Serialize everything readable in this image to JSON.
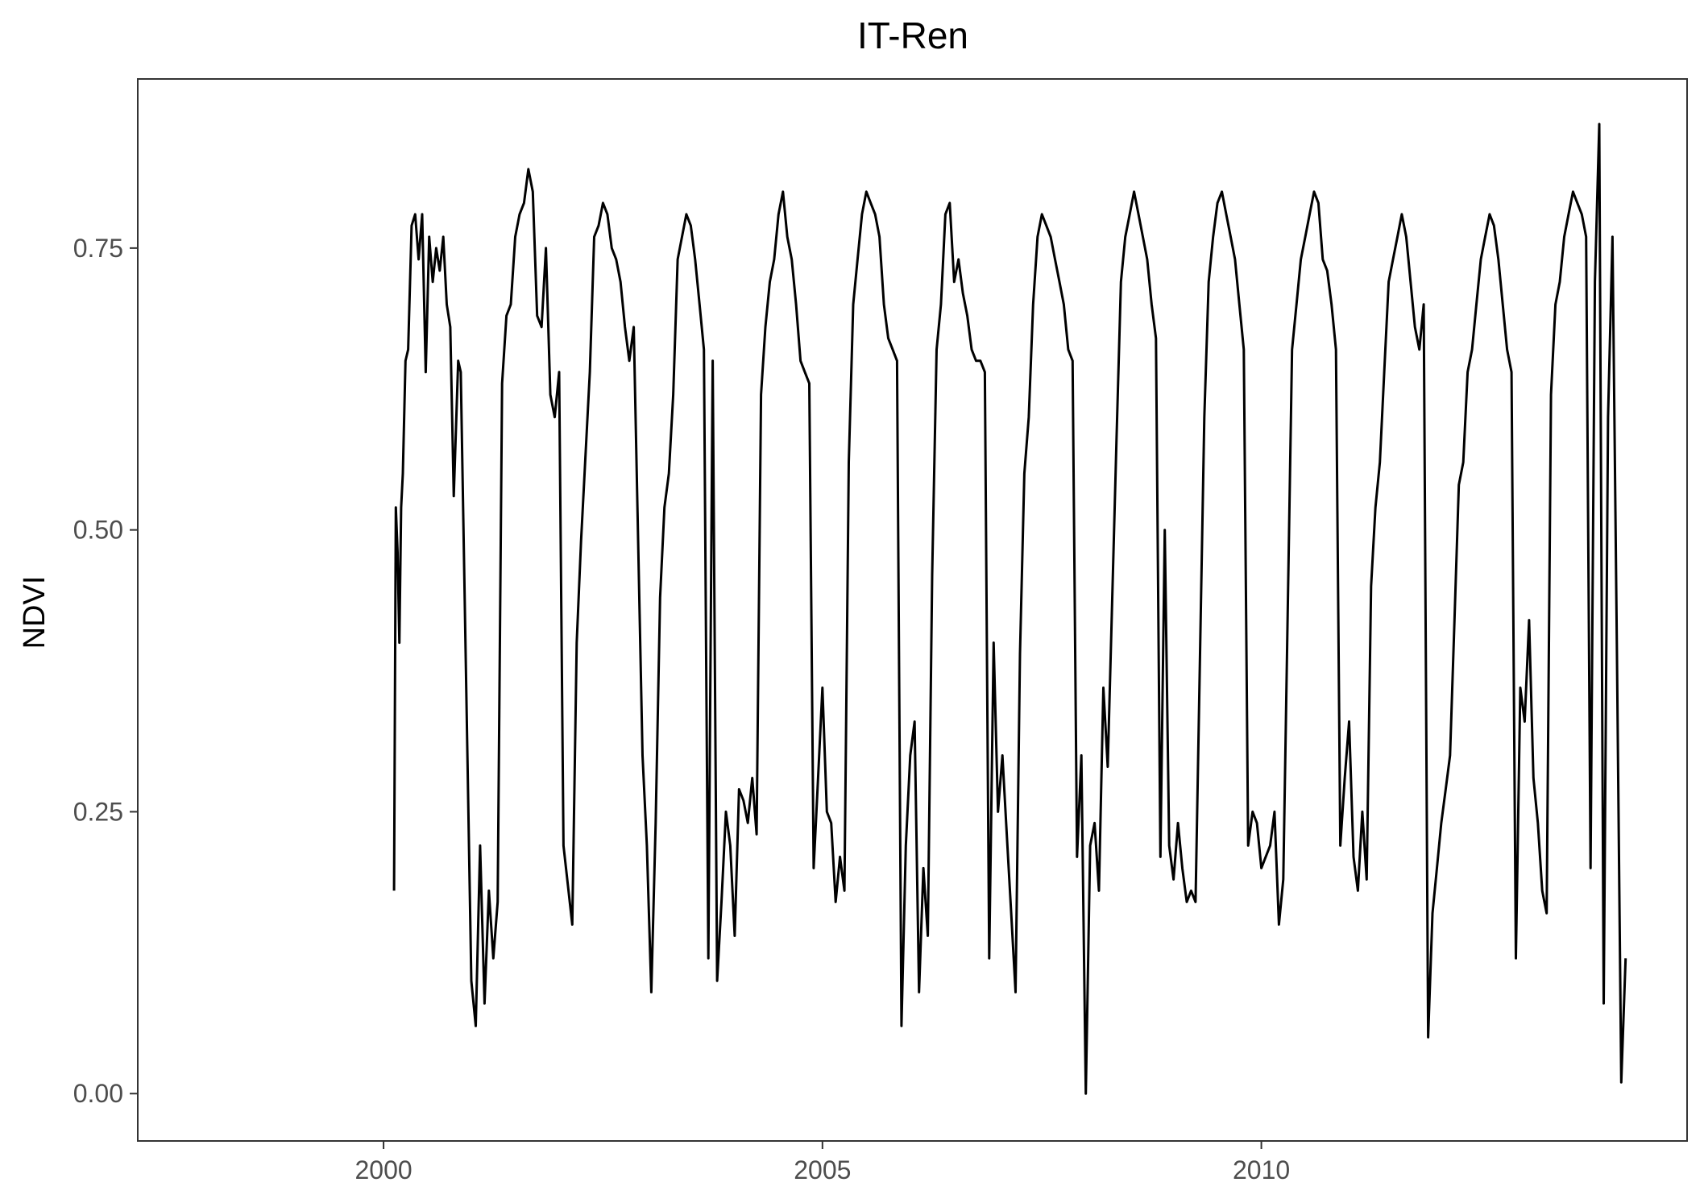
{
  "chart_data": {
    "type": "line",
    "title": "IT-Ren",
    "xlabel": "",
    "ylabel": "NDVI",
    "xlim": [
      1997.2,
      2014.85
    ],
    "ylim": [
      -0.042,
      0.9
    ],
    "xticks": [
      2000,
      2005,
      2010
    ],
    "xtick_labels": [
      "2000",
      "2005",
      "2010"
    ],
    "yticks": [
      0.0,
      0.25,
      0.5,
      0.75
    ],
    "ytick_labels": [
      "0.00",
      "0.25",
      "0.50",
      "0.75"
    ],
    "grid": false,
    "legend": "none",
    "line_color": "#000000",
    "series": [
      {
        "x": [
          2000.12,
          2000.14,
          2000.16,
          2000.18,
          2000.2,
          2000.22,
          2000.25,
          2000.28,
          2000.32,
          2000.36,
          2000.4,
          2000.44,
          2000.48,
          2000.52,
          2000.56,
          2000.6,
          2000.64,
          2000.68,
          2000.72,
          2000.76,
          2000.8,
          2000.85,
          2000.88,
          2001.0,
          2001.05,
          2001.1,
          2001.15,
          2001.2,
          2001.25,
          2001.3,
          2001.35,
          2001.4,
          2001.45,
          2001.5,
          2001.55,
          2001.6,
          2001.65,
          2001.7,
          2001.75,
          2001.8,
          2001.85,
          2001.9,
          2001.95,
          2002.0,
          2002.05,
          2002.15,
          2002.2,
          2002.25,
          2002.35,
          2002.4,
          2002.45,
          2002.5,
          2002.55,
          2002.6,
          2002.65,
          2002.7,
          2002.75,
          2002.8,
          2002.85,
          2002.95,
          2003.0,
          2003.05,
          2003.1,
          2003.15,
          2003.2,
          2003.25,
          2003.3,
          2003.35,
          2003.4,
          2003.45,
          2003.5,
          2003.55,
          2003.6,
          2003.65,
          2003.7,
          2003.75,
          2003.8,
          2003.85,
          2003.9,
          2003.95,
          2004.0,
          2004.05,
          2004.1,
          2004.15,
          2004.2,
          2004.25,
          2004.3,
          2004.35,
          2004.4,
          2004.45,
          2004.5,
          2004.55,
          2004.6,
          2004.65,
          2004.7,
          2004.75,
          2004.8,
          2004.85,
          2004.9,
          2004.95,
          2005.0,
          2005.05,
          2005.1,
          2005.15,
          2005.2,
          2005.25,
          2005.3,
          2005.35,
          2005.4,
          2005.45,
          2005.5,
          2005.55,
          2005.6,
          2005.65,
          2005.7,
          2005.75,
          2005.8,
          2005.85,
          2005.9,
          2005.95,
          2006.0,
          2006.05,
          2006.1,
          2006.15,
          2006.2,
          2006.25,
          2006.3,
          2006.35,
          2006.4,
          2006.45,
          2006.5,
          2006.55,
          2006.6,
          2006.65,
          2006.7,
          2006.75,
          2006.8,
          2006.85,
          2006.9,
          2006.95,
          2007.0,
          2007.05,
          2007.1,
          2007.15,
          2007.2,
          2007.25,
          2007.3,
          2007.35,
          2007.4,
          2007.45,
          2007.5,
          2007.55,
          2007.6,
          2007.65,
          2007.7,
          2007.75,
          2007.8,
          2007.85,
          2007.9,
          2007.95,
          2008.0,
          2008.05,
          2008.1,
          2008.15,
          2008.2,
          2008.25,
          2008.35,
          2008.4,
          2008.45,
          2008.5,
          2008.55,
          2008.6,
          2008.65,
          2008.7,
          2008.75,
          2008.8,
          2008.85,
          2008.9,
          2008.95,
          2009.0,
          2009.05,
          2009.1,
          2009.15,
          2009.2,
          2009.25,
          2009.35,
          2009.4,
          2009.45,
          2009.5,
          2009.55,
          2009.6,
          2009.65,
          2009.7,
          2009.75,
          2009.8,
          2009.85,
          2009.9,
          2009.95,
          2010.0,
          2010.05,
          2010.1,
          2010.15,
          2010.2,
          2010.25,
          2010.35,
          2010.4,
          2010.45,
          2010.5,
          2010.55,
          2010.6,
          2010.65,
          2010.7,
          2010.75,
          2010.8,
          2010.85,
          2010.9,
          2010.95,
          2011.0,
          2011.05,
          2011.1,
          2011.15,
          2011.2,
          2011.25,
          2011.3,
          2011.35,
          2011.4,
          2011.45,
          2011.5,
          2011.55,
          2011.6,
          2011.65,
          2011.7,
          2011.75,
          2011.8,
          2011.85,
          2011.9,
          2011.95,
          2012.0,
          2012.05,
          2012.1,
          2012.15,
          2012.2,
          2012.25,
          2012.3,
          2012.35,
          2012.4,
          2012.45,
          2012.5,
          2012.55,
          2012.6,
          2012.65,
          2012.7,
          2012.75,
          2012.8,
          2012.85,
          2012.9,
          2012.95,
          2013.0,
          2013.05,
          2013.1,
          2013.15,
          2013.2,
          2013.25,
          2013.3,
          2013.35,
          2013.4,
          2013.45,
          2013.5,
          2013.55,
          2013.6,
          2013.65,
          2013.7,
          2013.75,
          2013.8,
          2013.85,
          2013.9,
          2013.95,
          2014.0,
          2014.05,
          2014.1,
          2014.15
        ],
        "y": [
          0.18,
          0.52,
          0.48,
          0.4,
          0.52,
          0.55,
          0.65,
          0.66,
          0.77,
          0.78,
          0.74,
          0.78,
          0.64,
          0.76,
          0.72,
          0.75,
          0.73,
          0.76,
          0.7,
          0.68,
          0.53,
          0.65,
          0.64,
          0.1,
          0.06,
          0.22,
          0.08,
          0.18,
          0.12,
          0.17,
          0.63,
          0.69,
          0.7,
          0.76,
          0.78,
          0.79,
          0.82,
          0.8,
          0.69,
          0.68,
          0.75,
          0.62,
          0.6,
          0.64,
          0.22,
          0.15,
          0.4,
          0.49,
          0.64,
          0.76,
          0.77,
          0.79,
          0.78,
          0.75,
          0.74,
          0.72,
          0.68,
          0.65,
          0.68,
          0.3,
          0.22,
          0.09,
          0.24,
          0.44,
          0.52,
          0.55,
          0.62,
          0.74,
          0.76,
          0.78,
          0.77,
          0.74,
          0.7,
          0.66,
          0.12,
          0.65,
          0.1,
          0.17,
          0.25,
          0.22,
          0.14,
          0.27,
          0.26,
          0.24,
          0.28,
          0.23,
          0.62,
          0.68,
          0.72,
          0.74,
          0.78,
          0.8,
          0.76,
          0.74,
          0.7,
          0.65,
          0.64,
          0.63,
          0.2,
          0.28,
          0.36,
          0.25,
          0.24,
          0.17,
          0.21,
          0.18,
          0.56,
          0.7,
          0.74,
          0.78,
          0.8,
          0.79,
          0.78,
          0.76,
          0.7,
          0.67,
          0.66,
          0.65,
          0.06,
          0.22,
          0.3,
          0.33,
          0.09,
          0.2,
          0.14,
          0.46,
          0.66,
          0.7,
          0.78,
          0.79,
          0.72,
          0.74,
          0.71,
          0.69,
          0.66,
          0.65,
          0.65,
          0.64,
          0.12,
          0.4,
          0.25,
          0.3,
          0.23,
          0.16,
          0.09,
          0.39,
          0.55,
          0.6,
          0.7,
          0.76,
          0.78,
          0.77,
          0.76,
          0.74,
          0.72,
          0.7,
          0.66,
          0.65,
          0.21,
          0.3,
          0.0,
          0.22,
          0.24,
          0.18,
          0.36,
          0.29,
          0.58,
          0.72,
          0.76,
          0.78,
          0.8,
          0.78,
          0.76,
          0.74,
          0.7,
          0.67,
          0.21,
          0.5,
          0.22,
          0.19,
          0.24,
          0.2,
          0.17,
          0.18,
          0.17,
          0.6,
          0.72,
          0.76,
          0.79,
          0.8,
          0.78,
          0.76,
          0.74,
          0.7,
          0.66,
          0.22,
          0.25,
          0.24,
          0.2,
          0.21,
          0.22,
          0.25,
          0.15,
          0.19,
          0.66,
          0.7,
          0.74,
          0.76,
          0.78,
          0.8,
          0.79,
          0.74,
          0.73,
          0.7,
          0.66,
          0.22,
          0.28,
          0.33,
          0.21,
          0.18,
          0.25,
          0.19,
          0.45,
          0.52,
          0.56,
          0.64,
          0.72,
          0.74,
          0.76,
          0.78,
          0.76,
          0.72,
          0.68,
          0.66,
          0.7,
          0.05,
          0.16,
          0.2,
          0.24,
          0.27,
          0.3,
          0.42,
          0.54,
          0.56,
          0.64,
          0.66,
          0.7,
          0.74,
          0.76,
          0.78,
          0.77,
          0.74,
          0.7,
          0.66,
          0.64,
          0.12,
          0.36,
          0.33,
          0.42,
          0.28,
          0.24,
          0.18,
          0.16,
          0.62,
          0.7,
          0.72,
          0.76,
          0.78,
          0.8,
          0.79,
          0.78,
          0.76,
          0.2,
          0.72,
          0.86,
          0.08,
          0.6,
          0.76,
          0.4,
          0.01,
          0.12
        ]
      }
    ]
  }
}
